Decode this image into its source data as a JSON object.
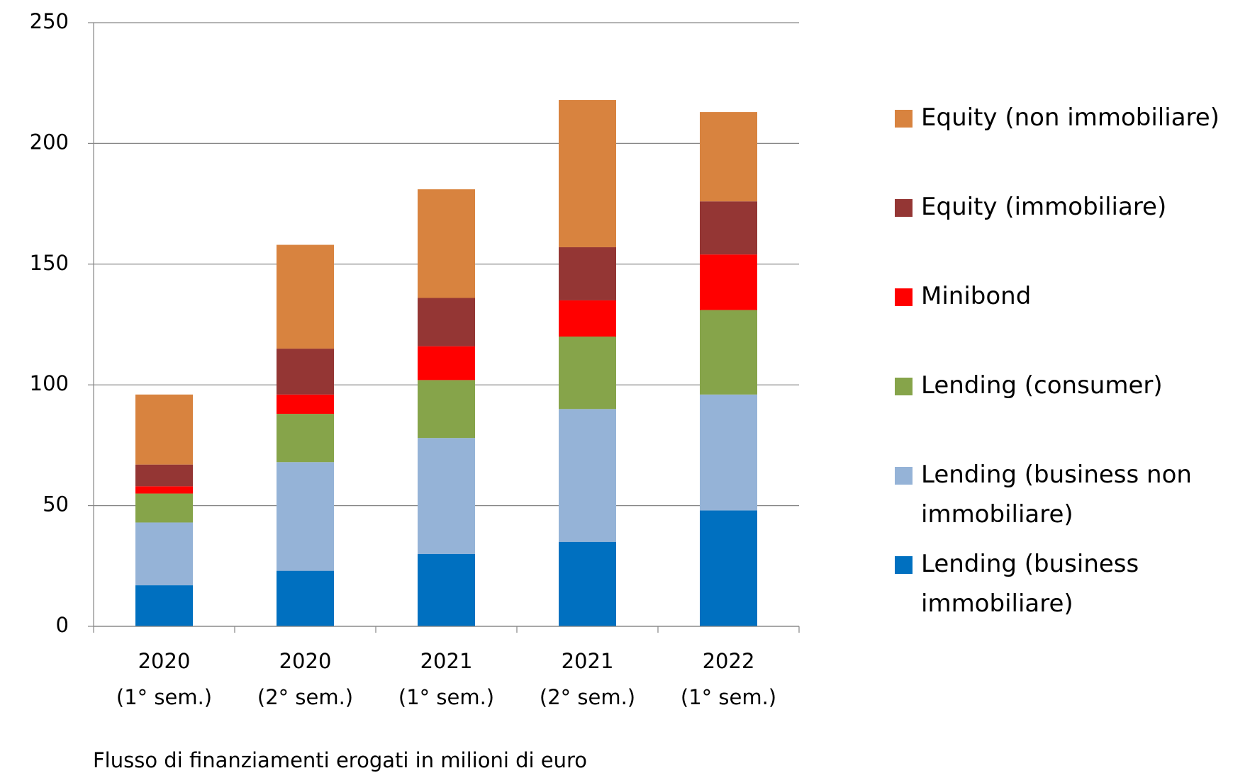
{
  "chart_data": {
    "type": "stacked_bar",
    "categories": [
      [
        "2020",
        "(1° sem.)"
      ],
      [
        "2020",
        "(2° sem.)"
      ],
      [
        "2021",
        "(1° sem.)"
      ],
      [
        "2021",
        "(2° sem.)"
      ],
      [
        "2022",
        "(1° sem.)"
      ]
    ],
    "series": [
      {
        "name": "Lending (business immobiliare)",
        "color": "#0070c0",
        "values": [
          17,
          23,
          30,
          35,
          48
        ]
      },
      {
        "name": "Lending (business non immobiliare)",
        "color": "#95b3d7",
        "values": [
          26,
          45,
          48,
          55,
          48
        ]
      },
      {
        "name": "Lending (consumer)",
        "color": "#86a44a",
        "values": [
          12,
          20,
          24,
          30,
          35
        ]
      },
      {
        "name": "Minibond",
        "color": "#ff0000",
        "values": [
          3,
          8,
          14,
          15,
          23
        ]
      },
      {
        "name": "Equity (immobiliare)",
        "color": "#943634",
        "values": [
          9,
          19,
          20,
          22,
          22
        ]
      },
      {
        "name": "Equity (non immobiliare)",
        "color": "#d8833f",
        "values": [
          29,
          43,
          45,
          61,
          37
        ]
      }
    ],
    "ylim": [
      0,
      250
    ],
    "yticks": [
      0,
      50,
      100,
      150,
      200,
      250
    ],
    "grid": true,
    "caption": "Flusso di finanziamenti erogati in milioni di euro"
  }
}
